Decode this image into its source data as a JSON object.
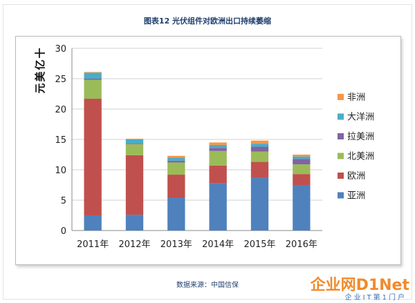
{
  "chart_data": {
    "type": "bar",
    "stacked": true,
    "title": "图表12  光伏组件对欧洲出口持续萎缩",
    "ylabel": "十亿美元",
    "xlabel": "",
    "ylim": [
      0,
      30
    ],
    "yticks": [
      0,
      5,
      10,
      15,
      20,
      25,
      30
    ],
    "grid": true,
    "legend_position": "right",
    "categories": [
      "2011年",
      "2012年",
      "2013年",
      "2014年",
      "2015年",
      "2016年"
    ],
    "series": [
      {
        "name": "亚洲",
        "color": "#4f81bd",
        "values": [
          2.5,
          2.6,
          5.4,
          7.8,
          8.7,
          7.5
        ]
      },
      {
        "name": "欧洲",
        "color": "#c0504d",
        "values": [
          19.2,
          9.8,
          3.8,
          2.9,
          2.6,
          1.8
        ]
      },
      {
        "name": "北美洲",
        "color": "#9bbb59",
        "values": [
          3.1,
          1.8,
          2.0,
          2.4,
          1.7,
          1.6
        ]
      },
      {
        "name": "拉美洲",
        "color": "#8064a2",
        "values": [
          0.2,
          0.1,
          0.3,
          0.5,
          0.8,
          0.9
        ]
      },
      {
        "name": "大洋洲",
        "color": "#4bacc6",
        "values": [
          1.0,
          0.7,
          0.5,
          0.5,
          0.5,
          0.4
        ]
      },
      {
        "name": "非洲",
        "color": "#f79646",
        "values": [
          0.1,
          0.1,
          0.3,
          0.4,
          0.5,
          0.3
        ]
      }
    ]
  },
  "footer": {
    "source": "数据来源：中国信保"
  },
  "watermark": {
    "main": "企业网D1Net",
    "sub": "企业IT第1门户"
  }
}
